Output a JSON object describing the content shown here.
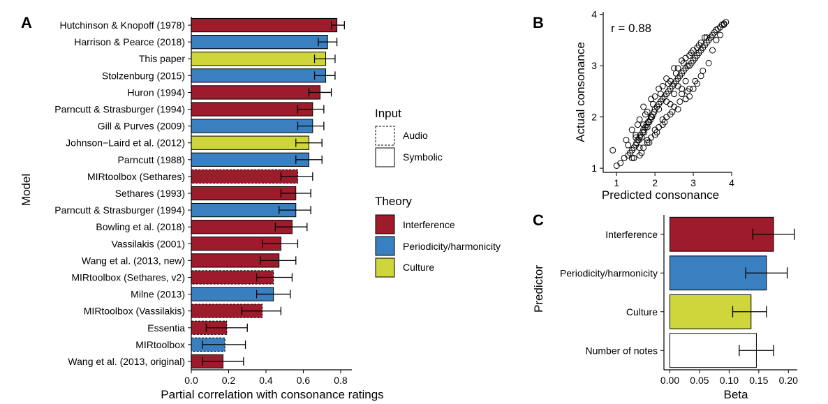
{
  "figure": {
    "panel_labels": {
      "a": "A",
      "b": "B",
      "c": "C"
    }
  },
  "colors": {
    "Interference": "#9e1b2b",
    "Periodicity/harmonicity": "#3a80c1",
    "Culture": "#cfd63c",
    "none": "#ffffff"
  },
  "legend": {
    "input_title": "Input",
    "input_items": [
      "Audio",
      "Symbolic"
    ],
    "theory_title": "Theory",
    "theory_items": [
      "Interference",
      "Periodicity/harmonicity",
      "Culture"
    ]
  },
  "chart_data": [
    {
      "panel": "A",
      "type": "bar",
      "orientation": "horizontal",
      "xlabel": "Partial correlation with consonance ratings",
      "ylabel": "Model",
      "xlim": [
        0,
        0.86
      ],
      "xticks": [
        "0.0",
        "0.2",
        "0.4",
        "0.6",
        "0.8"
      ],
      "grid": false,
      "categories": [
        "Hutchinson & Knopoff (1978)",
        "Harrison & Pearce (2018)",
        "This paper",
        "Stolzenburg (2015)",
        "Huron (1994)",
        "Parncutt & Strasburger (1994)",
        "Gill & Purves (2009)",
        "Johnson−Laird et al. (2012)",
        "Parncutt (1988)",
        "MIRtoolbox (Sethares)",
        "Sethares (1993)",
        "Parncutt & Strasburger (1994)",
        "Bowling et al. (2018)",
        "Vassilakis (2001)",
        "Wang et al. (2013, new)",
        "MIRtoolbox (Sethares, v2)",
        "Milne (2013)",
        "MIRtoolbox (Vassilakis)",
        "Essentia",
        "MIRtoolbox",
        "Wang et al. (2013, original)"
      ],
      "values": [
        0.78,
        0.73,
        0.72,
        0.72,
        0.69,
        0.65,
        0.65,
        0.63,
        0.63,
        0.57,
        0.56,
        0.56,
        0.54,
        0.48,
        0.47,
        0.44,
        0.44,
        0.38,
        0.19,
        0.18,
        0.17
      ],
      "err_low": [
        0.75,
        0.68,
        0.66,
        0.66,
        0.63,
        0.57,
        0.57,
        0.56,
        0.56,
        0.48,
        0.48,
        0.47,
        0.45,
        0.38,
        0.37,
        0.35,
        0.35,
        0.27,
        0.08,
        0.06,
        0.06
      ],
      "err_high": [
        0.82,
        0.78,
        0.77,
        0.77,
        0.75,
        0.71,
        0.71,
        0.7,
        0.7,
        0.65,
        0.64,
        0.64,
        0.62,
        0.57,
        0.56,
        0.54,
        0.53,
        0.48,
        0.3,
        0.29,
        0.28
      ],
      "theory": [
        "Interference",
        "Periodicity/harmonicity",
        "Culture",
        "Periodicity/harmonicity",
        "Interference",
        "Interference",
        "Periodicity/harmonicity",
        "Culture",
        "Periodicity/harmonicity",
        "Interference",
        "Interference",
        "Periodicity/harmonicity",
        "Interference",
        "Interference",
        "Interference",
        "Interference",
        "Periodicity/harmonicity",
        "Interference",
        "Interference",
        "Periodicity/harmonicity",
        "Interference"
      ],
      "input": [
        "Symbolic",
        "Symbolic",
        "Symbolic",
        "Symbolic",
        "Symbolic",
        "Symbolic",
        "Symbolic",
        "Symbolic",
        "Symbolic",
        "Audio",
        "Symbolic",
        "Symbolic",
        "Symbolic",
        "Symbolic",
        "Symbolic",
        "Audio",
        "Symbolic",
        "Audio",
        "Audio",
        "Audio",
        "Symbolic"
      ]
    },
    {
      "panel": "B",
      "type": "scatter",
      "xlabel": "Predicted consonance",
      "ylabel": "Actual consonance",
      "annotation": "r = 0.88",
      "xlim": [
        0.65,
        4.0
      ],
      "ylim": [
        0.92,
        4.05
      ],
      "xticks": [
        "1",
        "2",
        "3",
        "4"
      ],
      "yticks": [
        "1",
        "2",
        "3",
        "4"
      ],
      "grid": false,
      "x": [
        1.1,
        1.2,
        1.3,
        1.35,
        1.4,
        1.45,
        1.5,
        1.52,
        1.55,
        1.58,
        1.6,
        1.62,
        1.65,
        1.68,
        1.7,
        1.72,
        1.75,
        1.78,
        1.8,
        1.82,
        1.85,
        1.88,
        1.9,
        1.92,
        1.95,
        1.98,
        2.0,
        2.05,
        2.1,
        2.15,
        2.2,
        2.25,
        2.3,
        2.35,
        2.4,
        2.45,
        2.5,
        2.55,
        2.6,
        2.65,
        2.7,
        2.75,
        2.8,
        2.85,
        2.9,
        2.95,
        3.0,
        3.05,
        3.1,
        3.15,
        3.2,
        3.25,
        3.3,
        3.35,
        3.4,
        3.45,
        3.5,
        3.55,
        3.6,
        3.65,
        3.7,
        3.75,
        3.8,
        3.85,
        0.9,
        1.0,
        1.25,
        1.45,
        1.6,
        1.7,
        1.8,
        1.9,
        2.0,
        2.1,
        2.2,
        2.3,
        2.4,
        2.5,
        2.6,
        2.7,
        2.8,
        2.9,
        3.0,
        3.1,
        3.2,
        3.3,
        1.55,
        1.65,
        1.75,
        1.85,
        1.95,
        2.05,
        2.15,
        2.25,
        2.35,
        2.45,
        2.55,
        2.65,
        2.75,
        2.85,
        2.95,
        3.05,
        3.15,
        3.25,
        3.35,
        1.4,
        1.5,
        1.6,
        1.7,
        1.8,
        1.9,
        2.0,
        2.1,
        2.2,
        2.3,
        2.4,
        2.5,
        2.6,
        2.7,
        2.8,
        2.9,
        3.0,
        3.1,
        3.2,
        3.4,
        3.5,
        3.6,
        3.7,
        3.8,
        1.3,
        1.4,
        1.5,
        1.6,
        1.7,
        1.8,
        1.9,
        2.0,
        2.1,
        2.2,
        2.3,
        2.4,
        2.5,
        2.6,
        2.7,
        2.8,
        2.9
      ],
      "y": [
        1.1,
        1.2,
        1.25,
        1.3,
        1.35,
        1.4,
        1.45,
        1.5,
        1.55,
        1.55,
        1.6,
        1.65,
        1.6,
        1.7,
        1.75,
        1.7,
        1.8,
        1.85,
        1.8,
        1.9,
        1.9,
        1.95,
        2.0,
        2.0,
        2.05,
        2.1,
        2.15,
        2.2,
        2.25,
        2.3,
        2.35,
        2.4,
        2.45,
        2.5,
        2.55,
        2.6,
        2.65,
        2.7,
        2.75,
        2.8,
        2.85,
        2.9,
        2.95,
        3.0,
        3.0,
        3.05,
        3.1,
        3.15,
        3.2,
        3.25,
        3.3,
        3.35,
        3.4,
        3.45,
        3.5,
        3.55,
        3.6,
        3.65,
        3.7,
        3.72,
        3.75,
        3.8,
        3.82,
        3.85,
        1.35,
        1.05,
        1.55,
        1.2,
        1.95,
        1.4,
        2.1,
        1.6,
        2.4,
        1.8,
        2.6,
        2.0,
        2.7,
        2.2,
        2.95,
        2.45,
        3.15,
        2.55,
        3.3,
        2.65,
        3.45,
        3.55,
        1.85,
        1.3,
        2.05,
        1.5,
        2.25,
        1.7,
        2.45,
        1.9,
        2.65,
        2.1,
        2.85,
        2.3,
        3.05,
        2.5,
        3.25,
        2.7,
        3.4,
        2.9,
        3.55,
        1.75,
        1.6,
        1.25,
        2.2,
        1.5,
        2.35,
        1.65,
        2.55,
        1.85,
        2.75,
        2.05,
        2.95,
        2.15,
        3.1,
        2.35,
        3.2,
        2.55,
        3.35,
        2.8,
        3.05,
        3.3,
        3.5,
        3.6,
        3.8,
        1.45,
        1.2,
        1.65,
        1.4,
        1.85,
        1.55,
        2.0,
        1.75,
        2.15,
        1.95,
        2.3,
        2.25,
        2.45,
        2.6,
        2.55,
        2.7,
        2.4
      ]
    },
    {
      "panel": "C",
      "type": "bar",
      "orientation": "horizontal",
      "xlabel": "Beta",
      "ylabel": "Predictor",
      "xlim": [
        -0.01,
        0.215
      ],
      "xticks": [
        "0.00",
        "0.05",
        "0.10",
        "0.15",
        "0.20"
      ],
      "grid": false,
      "categories": [
        "Interference",
        "Periodicity/harmonicity",
        "Culture",
        "Number of notes"
      ],
      "values": [
        0.175,
        0.163,
        0.137,
        0.146
      ],
      "err_low": [
        0.14,
        0.128,
        0.106,
        0.117
      ],
      "err_high": [
        0.21,
        0.198,
        0.163,
        0.175
      ],
      "theory": [
        "Interference",
        "Periodicity/harmonicity",
        "Culture",
        "none"
      ]
    }
  ]
}
